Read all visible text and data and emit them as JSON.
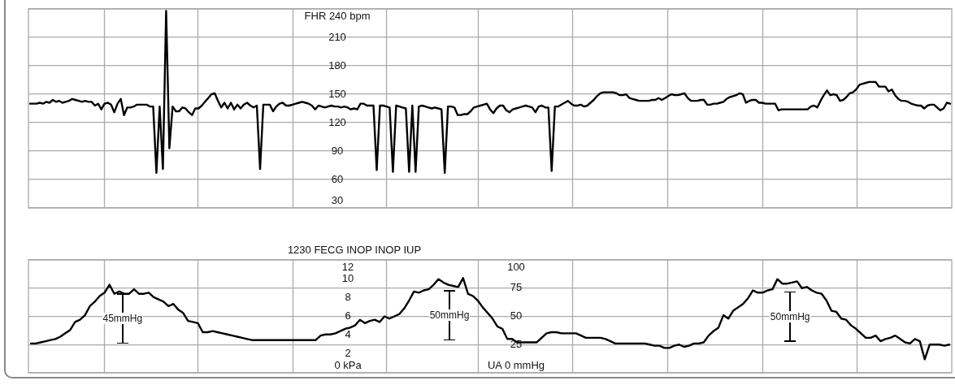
{
  "chart_data": [
    {
      "type": "line",
      "categories": [
        null,
        null,
        null,
        null,
        null,
        null,
        null,
        null,
        null,
        null,
        null,
        null,
        null,
        null,
        null,
        null,
        null,
        null,
        null,
        null,
        null,
        null,
        null,
        null,
        null,
        null,
        null,
        null,
        null,
        null,
        null,
        null,
        null,
        null,
        null,
        null,
        null,
        null,
        null,
        null,
        null,
        null,
        null,
        null,
        null,
        null,
        null,
        null,
        null,
        null,
        null,
        null,
        null,
        null,
        null,
        null,
        null,
        null,
        null,
        null,
        null,
        null,
        null,
        null,
        null,
        null,
        null,
        null,
        null,
        null,
        null,
        null,
        null,
        null,
        null,
        null,
        null,
        null,
        null,
        null,
        null,
        null,
        null,
        null,
        null,
        null,
        null,
        null,
        null,
        null,
        null,
        null,
        null,
        null,
        null,
        null,
        null,
        null,
        null,
        null,
        null,
        null,
        null,
        null,
        null,
        null,
        null,
        null,
        null,
        null,
        null,
        null,
        null,
        null,
        null,
        null,
        null,
        null,
        null,
        null,
        null,
        null,
        null,
        null,
        null,
        null,
        null,
        null,
        null,
        null,
        null,
        null,
        null,
        null,
        null,
        null,
        null,
        null,
        null,
        null,
        null,
        null,
        null,
        null,
        null,
        null,
        null,
        null,
        null,
        null,
        null,
        null,
        null,
        null,
        null,
        null,
        null,
        null,
        null,
        null,
        null,
        null,
        null,
        null,
        null,
        null,
        null,
        null,
        null,
        null,
        null,
        null,
        null,
        null,
        null,
        null,
        null,
        null,
        null,
        null,
        null,
        null,
        null,
        null,
        null,
        null,
        null,
        null,
        null,
        null,
        null,
        null,
        null,
        null,
        null,
        null,
        null,
        null,
        null,
        null,
        null,
        null,
        null,
        null,
        null,
        null,
        null,
        null,
        null,
        null,
        null,
        null,
        null,
        null,
        null,
        null,
        null,
        null,
        null,
        null,
        null,
        null,
        null,
        null,
        null,
        null,
        null,
        null,
        null,
        null,
        null,
        null,
        null,
        null,
        null,
        null,
        null,
        null,
        null,
        null,
        null,
        null,
        null,
        null,
        null,
        null,
        null,
        null,
        null,
        null,
        null,
        null,
        null,
        null,
        null,
        null,
        null,
        null,
        null,
        null,
        null,
        null,
        null,
        null,
        null,
        null,
        null,
        null,
        null,
        null,
        null,
        null,
        null,
        null,
        null,
        null,
        null,
        null,
        null,
        null,
        null,
        null,
        null,
        null,
        null
      ],
      "series": [
        {
          "color": "#000000",
          "values": [
            140,
            140,
            140,
            141,
            140,
            142,
            141,
            144,
            142,
            143,
            141,
            142,
            143,
            145,
            144,
            143,
            142,
            143,
            142,
            142,
            138,
            140,
            134,
            140,
            141,
            139,
            131,
            140,
            145,
            128,
            136,
            136,
            137,
            139,
            139,
            139,
            139,
            137,
            137,
            67,
            137,
            71,
            238,
            93,
            137,
            132,
            132,
            136,
            135,
            131,
            128,
            135,
            135,
            138,
            142,
            146,
            150,
            151,
            143,
            136,
            141,
            135,
            141,
            134,
            139,
            135,
            139,
            141,
            138,
            136,
            138,
            71,
            139,
            139,
            139,
            132,
            137,
            140,
            141,
            138,
            138,
            139,
            140,
            141,
            142,
            141,
            140,
            138,
            134,
            138,
            137,
            136,
            137,
            138,
            137,
            137,
            136,
            137,
            136,
            134,
            135,
            134,
            140,
            140,
            138,
            138,
            138,
            70,
            138,
            138,
            137,
            136,
            68,
            138,
            137,
            136,
            135,
            68,
            138,
            68,
            137,
            138,
            137,
            136,
            135,
            136,
            135,
            134,
            67,
            137,
            137,
            136,
            128,
            128,
            129,
            129,
            132,
            136,
            137,
            138,
            139,
            140,
            134,
            130,
            135,
            138,
            138,
            133,
            131,
            134,
            135,
            136,
            137,
            138,
            137,
            136,
            131,
            137,
            138,
            136,
            136,
            69,
            137,
            137,
            139,
            141,
            143,
            140,
            138,
            138,
            139,
            137,
            138,
            141,
            144,
            148,
            151,
            152,
            152,
            152,
            152,
            151,
            149,
            149,
            150,
            146,
            145,
            144,
            143,
            143,
            143,
            143,
            144,
            144,
            146,
            144,
            146,
            148,
            150,
            149,
            149,
            150,
            151,
            146,
            143,
            143,
            143,
            144,
            144,
            139,
            139,
            140,
            140,
            141,
            142,
            145,
            147,
            148,
            149,
            151,
            150,
            141,
            143,
            144,
            144,
            141,
            141,
            140,
            140,
            140,
            140,
            133,
            134,
            134,
            134,
            134,
            134,
            134,
            134,
            134,
            134,
            137,
            138,
            136,
            143,
            149,
            154,
            149,
            150,
            149,
            143,
            144,
            147,
            151,
            152,
            155,
            160,
            161,
            162,
            163,
            163,
            163,
            158,
            158,
            158,
            153,
            155,
            149,
            145,
            143,
            143,
            142,
            140,
            139,
            138,
            138,
            135,
            138,
            139,
            139,
            136,
            133,
            135,
            141,
            140
          ]
        }
      ],
      "ylim": [
        30,
        240
      ],
      "yticks": [
        30,
        60,
        90,
        120,
        150,
        180,
        210,
        {
          "value": 240,
          "label": "FHR 240 bpm"
        }
      ],
      "grid": true,
      "tick_labels": "y",
      "marker": "none",
      "line_style": "solid"
    },
    {
      "type": "line",
      "title": "1230 FECG INOP INOP IUP",
      "categories": [
        null,
        null,
        null,
        null,
        null,
        null,
        null,
        null,
        null,
        null,
        null,
        null,
        null,
        null,
        null,
        null,
        null,
        null,
        null,
        null,
        null,
        null,
        null,
        null,
        null,
        null,
        null,
        null,
        null,
        null,
        null,
        null,
        null,
        null,
        null,
        null,
        null,
        null,
        null,
        null,
        null,
        null,
        null,
        null,
        null,
        null,
        null,
        null,
        null,
        null,
        null,
        null,
        null,
        null,
        null,
        null,
        null,
        null,
        null,
        null,
        null,
        null,
        null,
        null,
        null,
        null,
        null,
        null,
        null,
        null,
        null,
        null,
        null,
        null,
        null,
        null,
        null,
        null,
        null,
        null,
        null,
        null,
        null,
        null,
        null,
        null,
        null,
        null,
        null,
        null,
        null,
        null,
        null,
        null,
        null,
        null,
        null,
        null,
        null,
        null,
        null,
        null,
        null,
        null,
        null,
        null,
        null,
        null,
        null,
        null,
        null,
        null,
        null,
        null,
        null,
        null,
        null,
        null,
        null,
        null,
        null,
        null,
        null,
        null,
        null,
        null,
        null,
        null,
        null,
        null,
        null,
        null,
        null,
        null,
        null,
        null,
        null,
        null,
        null,
        null,
        null,
        null,
        null,
        null,
        null,
        null,
        null,
        null,
        null,
        null,
        null,
        null,
        null,
        null,
        null,
        null,
        null,
        null,
        null,
        null,
        null,
        null,
        null,
        null,
        null,
        null,
        null,
        null,
        null,
        null,
        null,
        null,
        null,
        null,
        null,
        null,
        null,
        null,
        null,
        null,
        null,
        null,
        null,
        null,
        null,
        null,
        null,
        null
      ],
      "series": [
        {
          "color": "#000000",
          "values": [
            26,
            26,
            27,
            28,
            29,
            30,
            32,
            35,
            38,
            45,
            47,
            51,
            59,
            63,
            68,
            71,
            78,
            70,
            72,
            70,
            70,
            74,
            70,
            70,
            71,
            67,
            65,
            63,
            59,
            61,
            56,
            53,
            46,
            45,
            44,
            36,
            36,
            37,
            36,
            35,
            34,
            33,
            32,
            31,
            30,
            29,
            29,
            29,
            29,
            29,
            29,
            29,
            29,
            29,
            29,
            29,
            29,
            29,
            29,
            33,
            34,
            34,
            35,
            37,
            39,
            40,
            42,
            47,
            44,
            46,
            47,
            45,
            50,
            48,
            50,
            52,
            57,
            64,
            72,
            71,
            73,
            74,
            78,
            83,
            80,
            78,
            77,
            76,
            84,
            70,
            68,
            64,
            58,
            53,
            48,
            41,
            39,
            30,
            30,
            27,
            27,
            27,
            27,
            27,
            31,
            35,
            36,
            36,
            35,
            35,
            35,
            35,
            33,
            31,
            31,
            31,
            31,
            30,
            28,
            26,
            26,
            26,
            26,
            26,
            26,
            26,
            25,
            24,
            24,
            22,
            22,
            24,
            25,
            23,
            24,
            26,
            26,
            27,
            33,
            37,
            40,
            51,
            48,
            55,
            58,
            61,
            66,
            73,
            71,
            71,
            73,
            74,
            83,
            79,
            79,
            80,
            81,
            75,
            76,
            73,
            71,
            70,
            64,
            55,
            54,
            48,
            47,
            42,
            39,
            35,
            31,
            31,
            33,
            28,
            30,
            31,
            33,
            30,
            27,
            26,
            30,
            28,
            12,
            25,
            25,
            25,
            24,
            25
          ]
        }
      ],
      "ylim": [
        0,
        100
      ],
      "yticks": [
        {
          "value": 0,
          "label": "UA 0 mmHg"
        },
        25,
        50,
        75,
        100
      ],
      "y2lim": [
        0,
        12
      ],
      "y2ticks": [
        {
          "value": 0,
          "label": "0 kPa"
        },
        2,
        4,
        6,
        8,
        10,
        12
      ],
      "annotations": [
        "45mmHg",
        "50mmHg",
        "50mmHg"
      ],
      "grid": true,
      "tick_labels": "y",
      "marker": "none",
      "line_style": "solid"
    }
  ]
}
